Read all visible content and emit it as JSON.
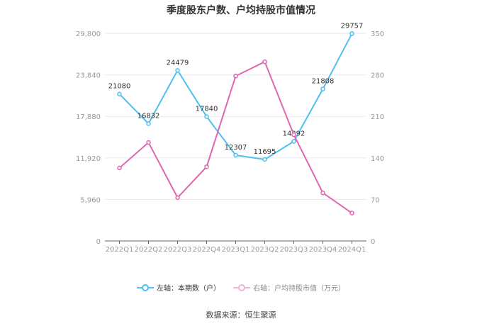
{
  "title": "季度股东户数、户均持股市值情况",
  "source": "数据来源：恒生聚源",
  "legend": {
    "left": "左轴：本期数（户）",
    "right": "右轴：户均持股市值（万元）"
  },
  "colors": {
    "left_series": "#4fbfef",
    "right_series": "#e066b0",
    "grid": "#e6e9f0",
    "axis_text": "#999999"
  },
  "chart_data": {
    "type": "line",
    "title": "季度股东户数、户均持股市值情况",
    "categories": [
      "2022Q1",
      "2022Q2",
      "2022Q3",
      "2022Q4",
      "2023Q1",
      "2023Q2",
      "2023Q3",
      "2023Q4",
      "2024Q1"
    ],
    "series": [
      {
        "name": "左轴：本期数（户）",
        "axis": "left",
        "values": [
          21080,
          16832,
          24479,
          17840,
          12307,
          11695,
          14292,
          21808,
          29757
        ],
        "labels_shown": true
      },
      {
        "name": "右轴：户均持股市值（万元）",
        "axis": "right",
        "values": [
          123,
          166,
          73,
          125,
          278,
          302,
          179,
          81,
          47
        ],
        "labels_shown": false
      }
    ],
    "left_axis": {
      "ticks": [
        "0",
        "5,960",
        "11,920",
        "17,880",
        "23,840",
        "29,800"
      ],
      "ylim": [
        0,
        29800
      ]
    },
    "right_axis": {
      "ticks": [
        "0",
        "70",
        "140",
        "210",
        "280",
        "350"
      ],
      "ylim": [
        0,
        350
      ]
    },
    "grid": true,
    "legend_position": "bottom"
  }
}
